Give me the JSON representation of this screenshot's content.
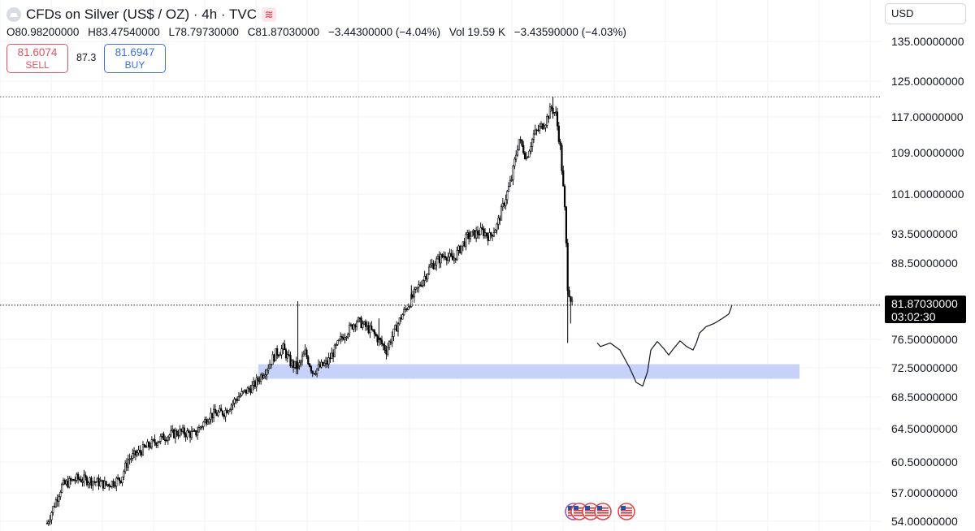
{
  "header": {
    "title": "CFDs on Silver (US$ / OZ) · 4h · TVC",
    "icon": "silver-symbol-icon",
    "tv_icon": "≋",
    "ohlc": {
      "o_label": "O",
      "o": "80.98200000",
      "h_label": "H",
      "h": "83.47540000",
      "l_label": "L",
      "l": "78.79730000",
      "c_label": "C",
      "c": "81.87030000",
      "change": "−3.44300000 (−4.04%)",
      "vol_label": "Vol",
      "vol": "19.59 K",
      "vol_change": "−3.43590000 (−4.03%)"
    }
  },
  "trade": {
    "sell_price": "81.6074",
    "sell_label": "SELL",
    "spread": "87.3",
    "buy_price": "81.6947",
    "buy_label": "BUY",
    "sell_color": "#e0545f",
    "buy_color": "#3d6fe0"
  },
  "price_axis": {
    "currency": "USD",
    "current_price": "81.87030000",
    "countdown": "03:02:30"
  },
  "chart_data": {
    "type": "candlestick",
    "ylabels": [
      "135.00000000",
      "125.00000000",
      "117.00000000",
      "109.00000000",
      "101.00000000",
      "93.50000000",
      "88.50000000",
      "76.50000000",
      "72.50000000",
      "68.50000000",
      "64.50000000",
      "60.50000000",
      "57.00000000",
      "54.00000000"
    ],
    "ylabel_values": [
      135,
      125,
      117,
      109,
      101,
      93.5,
      88.5,
      76.5,
      72.5,
      68.5,
      64.5,
      60.5,
      57,
      54
    ],
    "close_path": [
      {
        "i": 0,
        "v": 53.8
      },
      {
        "i": 10,
        "v": 57.8
      },
      {
        "i": 20,
        "v": 58.6
      },
      {
        "i": 30,
        "v": 58.4
      },
      {
        "i": 40,
        "v": 57.9
      },
      {
        "i": 50,
        "v": 58.6
      },
      {
        "i": 55,
        "v": 60.8
      },
      {
        "i": 70,
        "v": 62.6
      },
      {
        "i": 80,
        "v": 63.6
      },
      {
        "i": 90,
        "v": 64.1
      },
      {
        "i": 100,
        "v": 63.8
      },
      {
        "i": 110,
        "v": 66.2
      },
      {
        "i": 120,
        "v": 66.6
      },
      {
        "i": 130,
        "v": 68.6
      },
      {
        "i": 140,
        "v": 70.0
      },
      {
        "i": 150,
        "v": 72.8
      },
      {
        "i": 155,
        "v": 74.5
      },
      {
        "i": 160,
        "v": 75.2
      },
      {
        "i": 165,
        "v": 73.2
      },
      {
        "i": 170,
        "v": 72.5
      },
      {
        "i": 175,
        "v": 74.6
      },
      {
        "i": 180,
        "v": 72.0
      },
      {
        "i": 190,
        "v": 73.2
      },
      {
        "i": 200,
        "v": 76.8
      },
      {
        "i": 210,
        "v": 79.5
      },
      {
        "i": 220,
        "v": 77.8
      },
      {
        "i": 230,
        "v": 75.0
      },
      {
        "i": 240,
        "v": 80.0
      },
      {
        "i": 250,
        "v": 84.0
      },
      {
        "i": 260,
        "v": 88.0
      },
      {
        "i": 270,
        "v": 90.0
      },
      {
        "i": 275,
        "v": 89.0
      },
      {
        "i": 285,
        "v": 93.0
      },
      {
        "i": 295,
        "v": 94.0
      },
      {
        "i": 300,
        "v": 93.0
      },
      {
        "i": 305,
        "v": 95.0
      },
      {
        "i": 315,
        "v": 104.0
      },
      {
        "i": 320,
        "v": 112.0
      },
      {
        "i": 325,
        "v": 108.0
      },
      {
        "i": 330,
        "v": 113.0
      },
      {
        "i": 338,
        "v": 116.0
      },
      {
        "i": 342,
        "v": 119.0
      },
      {
        "i": 345,
        "v": 117.5
      },
      {
        "i": 348,
        "v": 110.0
      },
      {
        "i": 351,
        "v": 98.0
      },
      {
        "i": 353,
        "v": 85.0
      },
      {
        "i": 356,
        "v": 81.87
      }
    ],
    "wicks": [
      {
        "i": 170,
        "v": 82.5
      },
      {
        "i": 170,
        "v": 71.6
      },
      {
        "i": 225,
        "v": 79.8
      },
      {
        "i": 247,
        "v": 85.0
      },
      {
        "i": 343,
        "v": 121.5
      },
      {
        "i": 353,
        "v": 76.0
      },
      {
        "i": 355,
        "v": 79.0
      }
    ],
    "support_zone": {
      "low": 71.0,
      "high": 73.0
    },
    "current_price": 81.8703,
    "prev_high_line": 121.5,
    "projection": [
      {
        "t": 0,
        "v": 76.0
      },
      {
        "t": 2,
        "v": 75.5
      },
      {
        "t": 8,
        "v": 76.0
      },
      {
        "t": 14,
        "v": 75.0
      },
      {
        "t": 20,
        "v": 72.5
      },
      {
        "t": 24,
        "v": 70.5
      },
      {
        "t": 28,
        "v": 70.0
      },
      {
        "t": 31,
        "v": 72.0
      },
      {
        "t": 33,
        "v": 75.0
      },
      {
        "t": 37,
        "v": 76.2
      },
      {
        "t": 41,
        "v": 75.2
      },
      {
        "t": 44,
        "v": 74.3
      },
      {
        "t": 47,
        "v": 75.2
      },
      {
        "t": 51,
        "v": 76.3
      },
      {
        "t": 55,
        "v": 75.5
      },
      {
        "t": 59,
        "v": 75.0
      },
      {
        "t": 61,
        "v": 76.0
      },
      {
        "t": 63,
        "v": 77.5
      },
      {
        "t": 67,
        "v": 78.5
      },
      {
        "t": 72,
        "v": 79.0
      },
      {
        "t": 77,
        "v": 79.8
      },
      {
        "t": 81,
        "v": 80.5
      },
      {
        "t": 83,
        "v": 81.9
      }
    ],
    "grid": true,
    "series_color": "#000000",
    "zone_color": "#c6d2fa",
    "events_icons": [
      "us-flag-icon",
      "us-flag-icon",
      "us-flag-icon",
      "us-flag-icon",
      "us-flag-icon"
    ]
  }
}
